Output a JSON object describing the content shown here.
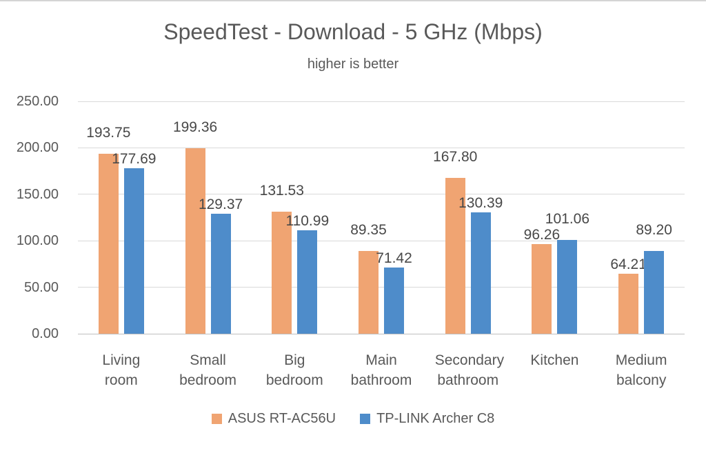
{
  "page": {
    "background": "#ffffff",
    "top_border_color": "#d4d4d4"
  },
  "chart_data": {
    "type": "bar",
    "title": "SpeedTest - Download - 5 GHz (Mbps)",
    "subtitle": "higher is better",
    "categories": [
      "Living room",
      "Small bedroom",
      "Big bedroom",
      "Main bathroom",
      "Secondary bathroom",
      "Kitchen",
      "Medium balcony"
    ],
    "series": [
      {
        "name": "ASUS RT-AC56U",
        "color": "#f0a472",
        "values": [
          193.75,
          199.36,
          131.53,
          89.35,
          167.8,
          96.26,
          64.21
        ]
      },
      {
        "name": "TP-LINK Archer C8",
        "color": "#4e8cca",
        "values": [
          177.69,
          129.37,
          110.99,
          71.42,
          130.39,
          101.06,
          89.2
        ]
      }
    ],
    "value_label_decimals": 2,
    "y_axis": {
      "min": 0,
      "max": 250,
      "step": 50,
      "tick_labels": [
        "0.00",
        "50.00",
        "100.00",
        "150.00",
        "200.00",
        "250.00"
      ]
    },
    "grid": true,
    "legend_position": "bottom",
    "colors": {
      "text": "#595959",
      "data_label": "#484848",
      "gridline": "#d9d9d9",
      "baseline": "#bfbfbf"
    },
    "label_dy": [
      [
        -12,
        -12,
        -12,
        -12,
        -12,
        5,
        5
      ],
      [
        5,
        5,
        5,
        5,
        5,
        -12,
        -12
      ]
    ]
  }
}
